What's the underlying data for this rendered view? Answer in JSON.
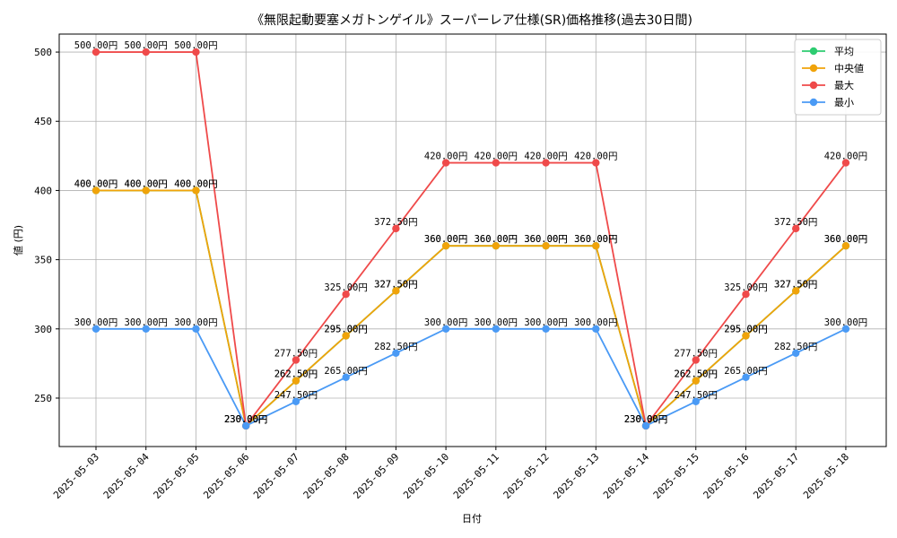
{
  "chart_data": {
    "type": "line",
    "title": "《無限起動要塞メガトンゲイル》スーパーレア仕様(SR)価格推移(過去30日間)",
    "xlabel": "日付",
    "ylabel": "値 (円)",
    "ylim": [
      215,
      513
    ],
    "yticks": [
      250,
      300,
      350,
      400,
      450,
      500
    ],
    "ytick_labels": [
      "250",
      "300",
      "350",
      "400",
      "450",
      "500"
    ],
    "legend_position": "top-right",
    "grid": true,
    "categories": [
      "2025-05-03",
      "2025-05-04",
      "2025-05-05",
      "2025-05-06",
      "2025-05-07",
      "2025-05-08",
      "2025-05-09",
      "2025-05-10",
      "2025-05-11",
      "2025-05-12",
      "2025-05-13",
      "2025-05-14",
      "2025-05-15",
      "2025-05-16",
      "2025-05-17",
      "2025-05-18"
    ],
    "series": [
      {
        "name": "平均",
        "color": "#2ecc71",
        "values": [
          400,
          400,
          400,
          230,
          262.5,
          295,
          327.5,
          360,
          360,
          360,
          360,
          230,
          262.5,
          295,
          327.5,
          360
        ],
        "labels": [
          "400.00円",
          "400.00円",
          "400.00円",
          "230.00円",
          "262.50円",
          "295.00円",
          "327.50円",
          "360.00円",
          "360.00円",
          "360.00円",
          "360.00円",
          "230.00円",
          "262.50円",
          "295.00円",
          "327.50円",
          "360.00円"
        ]
      },
      {
        "name": "中央値",
        "color": "#f0a30a",
        "values": [
          400,
          400,
          400,
          230,
          262.5,
          295,
          327.5,
          360,
          360,
          360,
          360,
          230,
          262.5,
          295,
          327.5,
          360
        ],
        "labels": [
          "400.00円",
          "400.00円",
          "400.00円",
          "230.00円",
          "262.50円",
          "295.00円",
          "327.50円",
          "360.00円",
          "360.00円",
          "360.00円",
          "360.00円",
          "230.00円",
          "262.50円",
          "295.00円",
          "327.50円",
          "360.00円"
        ]
      },
      {
        "name": "最大",
        "color": "#ef4a4a",
        "values": [
          500,
          500,
          500,
          230,
          277.5,
          325,
          372.5,
          420,
          420,
          420,
          420,
          230,
          277.5,
          325,
          372.5,
          420
        ],
        "labels": [
          "500.00円",
          "500.00円",
          "500.00円",
          "230.00円",
          "277.50円",
          "325.00円",
          "372.50円",
          "420.00円",
          "420.00円",
          "420.00円",
          "420.00円",
          "230.00円",
          "277.50円",
          "325.00円",
          "372.50円",
          "420.00円"
        ]
      },
      {
        "name": "最小",
        "color": "#4a9af5",
        "values": [
          300,
          300,
          300,
          230,
          247.5,
          265,
          282.5,
          300,
          300,
          300,
          300,
          230,
          247.5,
          265,
          282.5,
          300
        ],
        "labels": [
          "300.00円",
          "300.00円",
          "300.00円",
          "230.00円",
          "247.50円",
          "265.00円",
          "282.50円",
          "300.00円",
          "300.00円",
          "300.00円",
          "300.00円",
          "230.00円",
          "247.50円",
          "265.00円",
          "282.50円",
          "300.00円"
        ]
      }
    ]
  }
}
